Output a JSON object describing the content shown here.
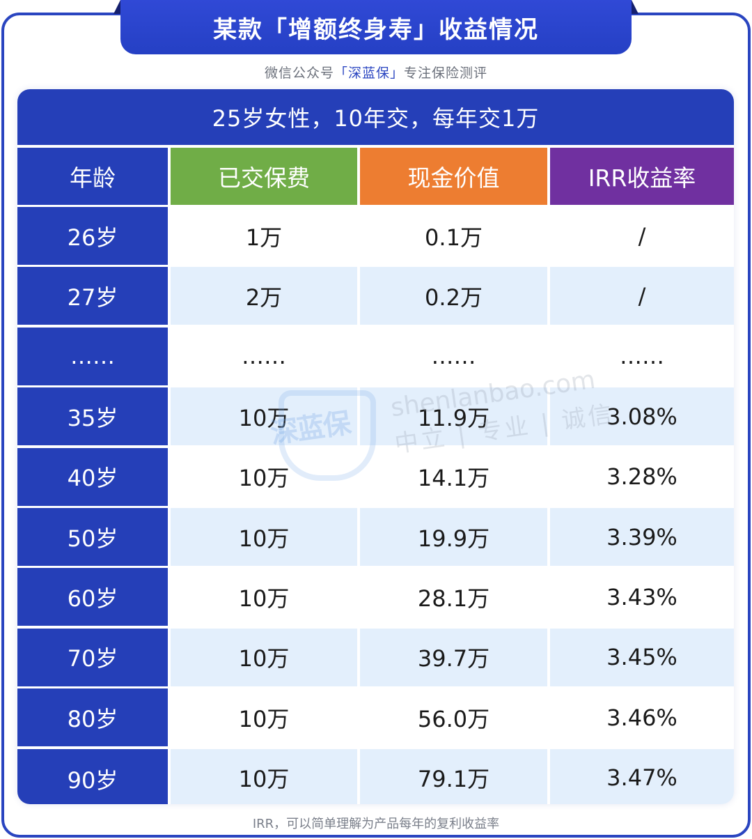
{
  "title": "某款「增额终身寿」收益情况",
  "subtitle": {
    "prefix": "微信公众号",
    "brand": "「深蓝保」",
    "suffix": "专注保险测评"
  },
  "table": {
    "band": "25岁女性，10年交，每年交1万",
    "headers": [
      {
        "label": "年龄",
        "color": "#253fb8"
      },
      {
        "label": "已交保费",
        "color": "#70ad47"
      },
      {
        "label": "现金价值",
        "color": "#ed7d31"
      },
      {
        "label": "IRR收益率",
        "color": "#7030a0"
      }
    ],
    "rows": [
      {
        "age": "26岁",
        "paid": "1万",
        "cash": "0.1万",
        "irr": "/"
      },
      {
        "age": "27岁",
        "paid": "2万",
        "cash": "0.2万",
        "irr": "/"
      },
      {
        "age": "……",
        "paid": "……",
        "cash": "……",
        "irr": "……"
      },
      {
        "age": "35岁",
        "paid": "10万",
        "cash": "11.9万",
        "irr": "3.08%"
      },
      {
        "age": "40岁",
        "paid": "10万",
        "cash": "14.1万",
        "irr": "3.28%"
      },
      {
        "age": "50岁",
        "paid": "10万",
        "cash": "19.9万",
        "irr": "3.39%"
      },
      {
        "age": "60岁",
        "paid": "10万",
        "cash": "28.1万",
        "irr": "3.43%"
      },
      {
        "age": "70岁",
        "paid": "10万",
        "cash": "39.7万",
        "irr": "3.45%"
      },
      {
        "age": "80岁",
        "paid": "10万",
        "cash": "56.0万",
        "irr": "3.46%"
      },
      {
        "age": "90岁",
        "paid": "10万",
        "cash": "79.1万",
        "irr": "3.47%"
      }
    ]
  },
  "watermark": {
    "logo": "深蓝保",
    "url": "shenlanbao.com",
    "slogan": "中立 | 专业 | 诚信"
  },
  "footnote": "IRR，可以简单理解为产品每年的复利收益率",
  "colors": {
    "primary_blue": "#253fb8",
    "frame_blue": "#2a45c0",
    "green": "#70ad47",
    "orange": "#ed7d31",
    "purple": "#7030a0",
    "alt_row": "#e3effc"
  }
}
